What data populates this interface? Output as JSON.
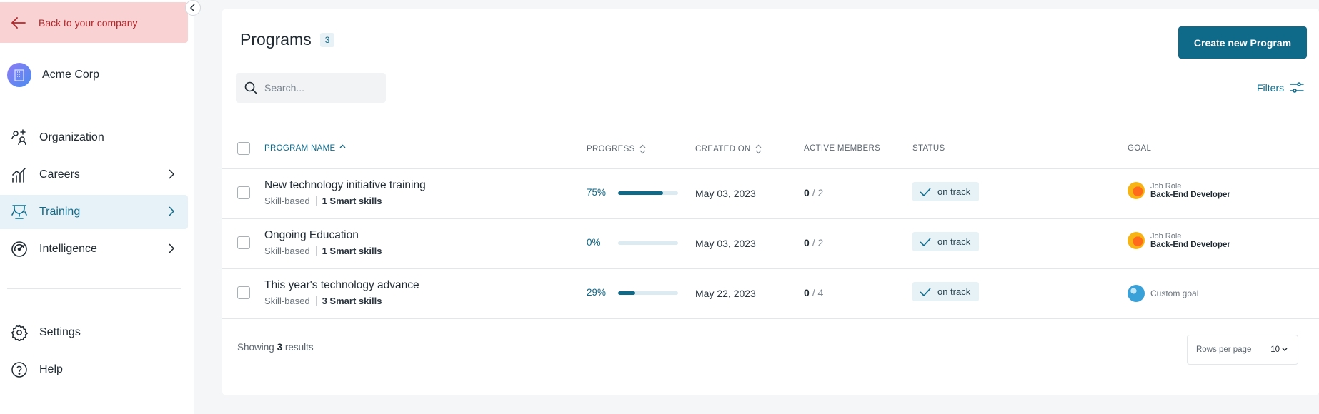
{
  "sidebar": {
    "back_label": "Back to your company",
    "company_name": "Acme Corp",
    "nav": [
      {
        "label": "Organization",
        "icon": "organization-icon"
      },
      {
        "label": "Careers",
        "icon": "careers-icon",
        "has_children": true
      },
      {
        "label": "Training",
        "icon": "training-icon",
        "has_children": true,
        "active": true
      },
      {
        "label": "Intelligence",
        "icon": "intelligence-icon",
        "has_children": true
      }
    ],
    "bottom_nav": [
      {
        "label": "Settings",
        "icon": "gear-icon"
      },
      {
        "label": "Help",
        "icon": "help-icon"
      }
    ]
  },
  "page": {
    "title": "Programs",
    "count": "3",
    "create_button": "Create new Program",
    "search_placeholder": "Search...",
    "filters_label": "Filters"
  },
  "table": {
    "headers": {
      "name": "PROGRAM NAME",
      "progress": "PROGRESS",
      "created": "CREATED ON",
      "members": "ACTIVE MEMBERS",
      "status": "STATUS",
      "goal": "GOAL"
    },
    "rows": [
      {
        "name": "New technology initiative training",
        "type": "Skill-based",
        "skills": "1 Smart skills",
        "progress": "75%",
        "progress_value": 0.75,
        "created": "May 03, 2023",
        "active": "0",
        "total": "/ 2",
        "status": "on track",
        "goal_label": "Job Role",
        "goal_value": "Back-End Developer",
        "goal_type": "job-role"
      },
      {
        "name": "Ongoing Education",
        "type": "Skill-based",
        "skills": "1 Smart skills",
        "progress": "0%",
        "progress_value": 0,
        "created": "May 03, 2023",
        "active": "0",
        "total": "/ 2",
        "status": "on track",
        "goal_label": "Job Role",
        "goal_value": "Back-End Developer",
        "goal_type": "job-role"
      },
      {
        "name": "This year's technology advance",
        "type": "Skill-based",
        "skills": "3 Smart skills",
        "progress": "29%",
        "progress_value": 0.29,
        "created": "May 22, 2023",
        "active": "0",
        "total": "/ 4",
        "status": "on track",
        "goal_label": "",
        "goal_value": "Custom goal",
        "goal_type": "custom"
      }
    ]
  },
  "footer": {
    "showing_prefix": "Showing",
    "showing_count": "3",
    "showing_suffix": "results",
    "rows_per_page_label": "Rows per page",
    "rows_per_page_value": "10"
  },
  "colors": {
    "accent": "#0f6a8a",
    "back_bg": "#f9d3d3",
    "back_text": "#b5262b",
    "active_nav_bg": "#e6f2f7"
  }
}
